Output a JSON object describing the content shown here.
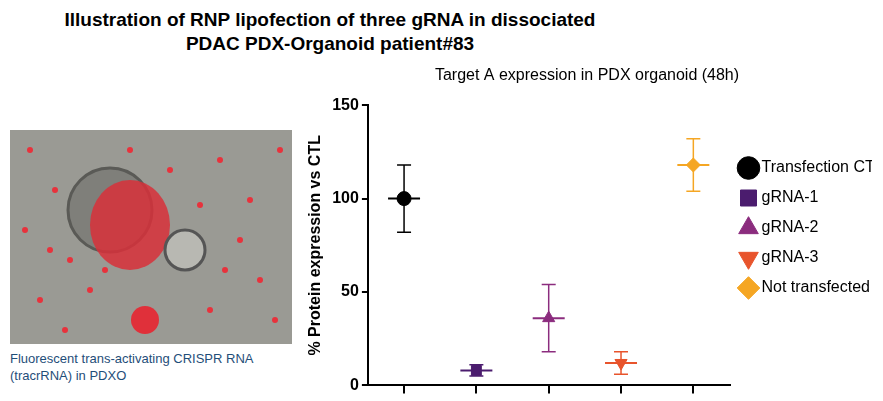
{
  "header": {
    "title": "Illustration of RNP lipofection of three gRNA in dissociated PDAC PDX-Organoid patient#83"
  },
  "image": {
    "caption": "Fluorescent trans-activating CRISPR RNA (tracrRNA) in PDXO"
  },
  "chart_data": {
    "type": "scatter",
    "title": "Target A expression in PDX organoid (48h)",
    "y_label": "% Protein expression vs CTL",
    "categories": [
      null,
      null,
      null,
      null,
      null
    ],
    "series": [
      {
        "name": "Transfection CTL",
        "color": "#000000",
        "marker": "circle",
        "values": [
          100,
          null,
          null,
          null,
          null
        ],
        "error": [
          18,
          null,
          null,
          null,
          null
        ]
      },
      {
        "name": "gRNA-1",
        "color": "#4b1c6e",
        "marker": "square",
        "values": [
          null,
          8,
          null,
          null,
          null
        ],
        "error": [
          null,
          3,
          null,
          null,
          null
        ]
      },
      {
        "name": "gRNA-2",
        "color": "#8b2c7e",
        "marker": "triangle",
        "values": [
          null,
          null,
          36,
          null,
          null
        ],
        "error": [
          null,
          null,
          18,
          null,
          null
        ]
      },
      {
        "name": "gRNA-3",
        "color": "#e8542c",
        "marker": "triangle-down",
        "values": [
          null,
          null,
          null,
          12,
          null
        ],
        "error": [
          null,
          null,
          null,
          6,
          null
        ]
      },
      {
        "name": "Not transfected cells",
        "color": "#f5a623",
        "marker": "diamond",
        "values": [
          null,
          null,
          null,
          null,
          118
        ],
        "error": [
          null,
          null,
          null,
          null,
          14
        ]
      }
    ],
    "ylim": [
      0,
      150
    ],
    "yticks": [
      0,
      50,
      100,
      150
    ],
    "grid": false,
    "legend": "right",
    "tick_labels": "y"
  }
}
